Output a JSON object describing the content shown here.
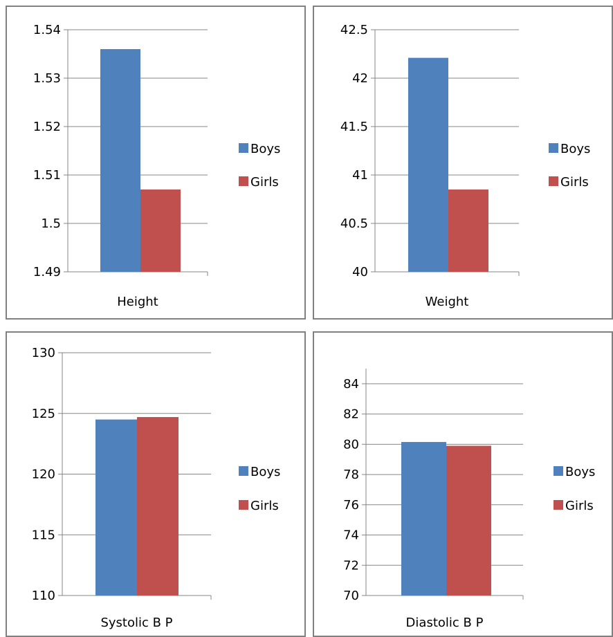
{
  "chart_data": [
    {
      "type": "bar",
      "categories": [
        "Height"
      ],
      "series": [
        {
          "name": "Boys",
          "values": [
            1.536
          ]
        },
        {
          "name": "Girls",
          "values": [
            1.507
          ]
        }
      ],
      "ylim": [
        1.49,
        1.54
      ],
      "yticks": [
        "1.49",
        "1.5",
        "1.51",
        "1.52",
        "1.53",
        "1.54"
      ],
      "grid": true,
      "legend": "right",
      "colors": [
        "#4f81bd",
        "#c0504d"
      ]
    },
    {
      "type": "bar",
      "categories": [
        "Weight"
      ],
      "series": [
        {
          "name": "Boys",
          "values": [
            42.21
          ]
        },
        {
          "name": "Girls",
          "values": [
            40.85
          ]
        }
      ],
      "ylim": [
        40,
        42.5
      ],
      "yticks": [
        "40",
        "40.5",
        "41",
        "41.5",
        "42",
        "42.5"
      ],
      "grid": true,
      "legend": "right",
      "colors": [
        "#4f81bd",
        "#c0504d"
      ]
    },
    {
      "type": "bar",
      "categories": [
        "Systolic B P"
      ],
      "series": [
        {
          "name": "Boys",
          "values": [
            124.5
          ]
        },
        {
          "name": "Girls",
          "values": [
            124.7
          ]
        }
      ],
      "ylim": [
        110,
        130
      ],
      "yticks": [
        "110",
        "115",
        "120",
        "125",
        "130"
      ],
      "grid": true,
      "legend": "right",
      "colors": [
        "#4f81bd",
        "#c0504d"
      ]
    },
    {
      "type": "bar",
      "categories": [
        "Diastolic B P"
      ],
      "series": [
        {
          "name": "Boys",
          "values": [
            80.15
          ]
        },
        {
          "name": "Girls",
          "values": [
            79.9
          ]
        }
      ],
      "ylim": [
        70,
        85
      ],
      "yticks": [
        "70",
        "72",
        "74",
        "76",
        "78",
        "80",
        "82",
        "84"
      ],
      "grid": true,
      "legend": "right",
      "colors": [
        "#4f81bd",
        "#c0504d"
      ]
    }
  ]
}
